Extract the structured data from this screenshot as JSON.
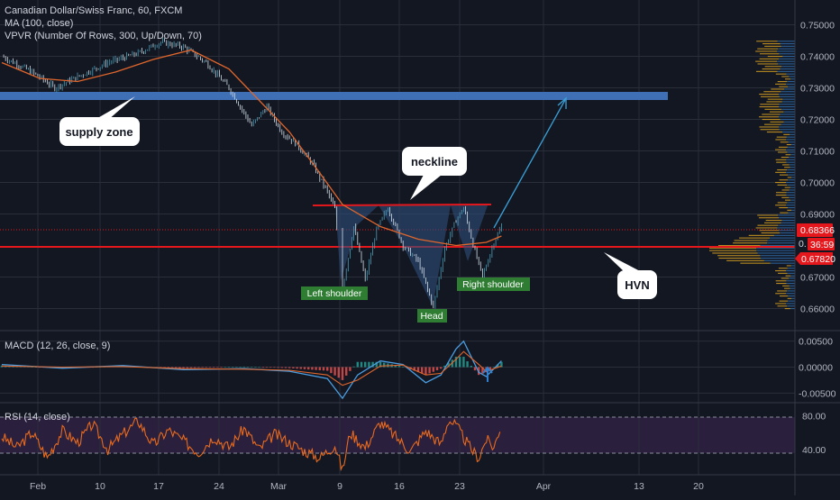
{
  "header": {
    "symbol_line": "Canadian Dollar/Swiss Franc, 60, FXCM",
    "ma_line": "MA (100, close)",
    "vpvr_line": "VPVR (Number Of Rows, 300, Up/Down, 70)"
  },
  "colors": {
    "background": "#131722",
    "grid": "#2a2e39",
    "bull_candle": "#4a9db8",
    "bear_candle": "#d2dde6",
    "ma": "#e0662c",
    "supply_zone": "#3f6fb5",
    "hvn_line": "#e3171c",
    "neckline": "#e3171c",
    "pattern_fill": "#2f4f7a",
    "vpvr_up": "#d7a020",
    "vpvr_down": "#2f6ba8",
    "rsi_line": "#e86a1e",
    "rsi_band": "#2a1f3d",
    "macd_line": "#4a9de0",
    "macd_signal": "#e0662c",
    "label_green": "#2e7d32",
    "price_tag_red": "#e3171c",
    "projection_arrow": "#3aa0d6"
  },
  "annotations": {
    "supply_zone": "supply zone",
    "neckline": "neckline",
    "hvn": "HVN",
    "left_shoulder": "Left shoulder",
    "head": "Head",
    "right_shoulder": "Right shoulder"
  },
  "price_tags": {
    "last_price": "0.68366",
    "countdown": "36:59",
    "hvn_price": "0.67820",
    "hidden_prefix": "0."
  },
  "chart_data": [
    {
      "type": "candlestick",
      "title": "Canadian Dollar/Swiss Franc, 60, FXCM",
      "ylim": [
        0.655,
        0.755
      ],
      "y_ticks": [
        "0.75000",
        "0.74000",
        "0.73000",
        "0.72000",
        "0.71000",
        "0.70000",
        "0.69000",
        "0.67000",
        "0.66000"
      ],
      "x_ticks": [
        "Feb",
        "10",
        "17",
        "24",
        "Mar",
        "9",
        "16",
        "23",
        "Apr",
        "13",
        "20"
      ],
      "price_path": [
        [
          0,
          0.74
        ],
        [
          4,
          0.735
        ],
        [
          7,
          0.73
        ],
        [
          10,
          0.7335
        ],
        [
          14,
          0.738
        ],
        [
          18,
          0.741
        ],
        [
          21,
          0.7445
        ],
        [
          24,
          0.743
        ],
        [
          27,
          0.738
        ],
        [
          30,
          0.73
        ],
        [
          33,
          0.718
        ],
        [
          35,
          0.724
        ],
        [
          37,
          0.716
        ],
        [
          39,
          0.712
        ],
        [
          41,
          0.706
        ],
        [
          43,
          0.697
        ],
        [
          44,
          0.6915
        ],
        [
          45,
          0.6665
        ],
        [
          46.5,
          0.686
        ],
        [
          48,
          0.669
        ],
        [
          49.5,
          0.685
        ],
        [
          51,
          0.692
        ],
        [
          53,
          0.68
        ],
        [
          55,
          0.675
        ],
        [
          57,
          0.6605
        ],
        [
          58.5,
          0.679
        ],
        [
          60,
          0.688
        ],
        [
          61,
          0.692
        ],
        [
          62.5,
          0.678
        ],
        [
          63.5,
          0.67
        ],
        [
          65,
          0.681
        ],
        [
          66,
          0.686
        ]
      ],
      "ma_path": [
        [
          0,
          0.738
        ],
        [
          5,
          0.733
        ],
        [
          10,
          0.732
        ],
        [
          15,
          0.735
        ],
        [
          20,
          0.739
        ],
        [
          25,
          0.742
        ],
        [
          30,
          0.736
        ],
        [
          34,
          0.726
        ],
        [
          38,
          0.716
        ],
        [
          42,
          0.703
        ],
        [
          45,
          0.693
        ],
        [
          50,
          0.686
        ],
        [
          55,
          0.682
        ],
        [
          60,
          0.68
        ],
        [
          64,
          0.681
        ],
        [
          66,
          0.683
        ]
      ],
      "horizontal_levels": {
        "supply_zone": 0.725,
        "hvn": 0.6782,
        "last_price": 0.68366,
        "neckline": 0.6915
      },
      "projection_target": 0.7245
    },
    {
      "type": "line",
      "title": "MACD (12, 26, close, 9)",
      "ylim": [
        -0.0065,
        0.0065
      ],
      "y_ticks": [
        "0.00500",
        "0.00000",
        "-0.00500"
      ],
      "macd": [
        [
          0,
          0.0005
        ],
        [
          8,
          -0.0002
        ],
        [
          16,
          0.0003
        ],
        [
          24,
          -0.0005
        ],
        [
          32,
          -0.0003
        ],
        [
          38,
          -0.0008
        ],
        [
          43,
          -0.0022
        ],
        [
          45,
          -0.006
        ],
        [
          47,
          -0.0015
        ],
        [
          50,
          0.0012
        ],
        [
          53,
          0.0005
        ],
        [
          56,
          -0.003
        ],
        [
          58,
          -0.0015
        ],
        [
          60,
          0.0035
        ],
        [
          61,
          0.005
        ],
        [
          63,
          -0.001
        ],
        [
          64,
          -0.0018
        ],
        [
          66,
          0.0012
        ]
      ],
      "signal": [
        [
          0,
          0.0002
        ],
        [
          8,
          0.0
        ],
        [
          16,
          0.0001
        ],
        [
          24,
          -0.0003
        ],
        [
          32,
          -0.0004
        ],
        [
          38,
          -0.0006
        ],
        [
          43,
          -0.0015
        ],
        [
          45,
          -0.0035
        ],
        [
          47,
          -0.0025
        ],
        [
          50,
          0.0002
        ],
        [
          53,
          0.0004
        ],
        [
          56,
          -0.0015
        ],
        [
          58,
          -0.0012
        ],
        [
          60,
          0.0015
        ],
        [
          61,
          0.003
        ],
        [
          63,
          0.0005
        ],
        [
          64,
          -0.0008
        ],
        [
          66,
          0.0002
        ]
      ]
    },
    {
      "type": "line",
      "title": "RSI (14, close)",
      "ylim": [
        12,
        92
      ],
      "y_ticks": [
        "80.00",
        "40.00"
      ],
      "bands": [
        70,
        30
      ],
      "rsi": [
        [
          0,
          55
        ],
        [
          2,
          42
        ],
        [
          4,
          60
        ],
        [
          6,
          30
        ],
        [
          8,
          62
        ],
        [
          10,
          48
        ],
        [
          12,
          70
        ],
        [
          14,
          40
        ],
        [
          16,
          58
        ],
        [
          18,
          74
        ],
        [
          20,
          45
        ],
        [
          22,
          63
        ],
        [
          24,
          50
        ],
        [
          26,
          36
        ],
        [
          28,
          55
        ],
        [
          30,
          42
        ],
        [
          32,
          65
        ],
        [
          34,
          40
        ],
        [
          36,
          58
        ],
        [
          38,
          48
        ],
        [
          40,
          38
        ],
        [
          42,
          30
        ],
        [
          44,
          45
        ],
        [
          45,
          15
        ],
        [
          46,
          60
        ],
        [
          48,
          42
        ],
        [
          50,
          72
        ],
        [
          52,
          55
        ],
        [
          54,
          38
        ],
        [
          56,
          62
        ],
        [
          58,
          46
        ],
        [
          59,
          75
        ],
        [
          60,
          68
        ],
        [
          62,
          40
        ],
        [
          63,
          30
        ],
        [
          64,
          52
        ],
        [
          65,
          42
        ],
        [
          66,
          71
        ]
      ]
    }
  ]
}
